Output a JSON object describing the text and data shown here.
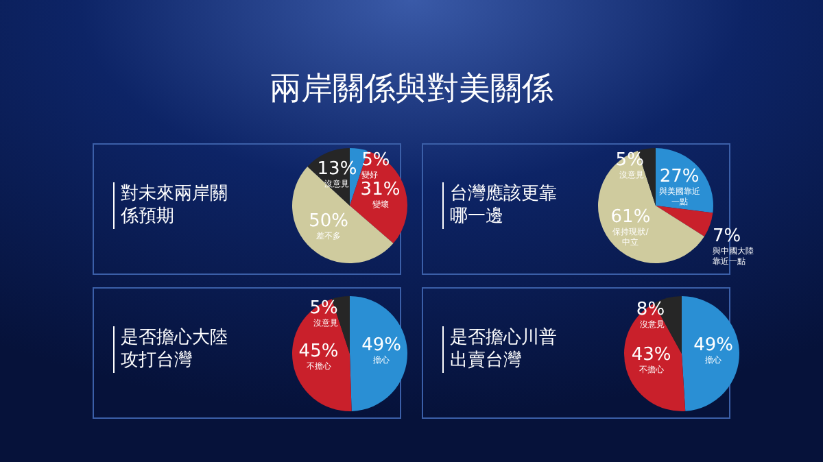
{
  "chart_data": [
    {
      "type": "other",
      "title": "兩岸關係與對美關係"
    },
    {
      "type": "pie",
      "title": "對未來兩岸關係預期",
      "categories": [
        "變好",
        "變壞",
        "差不多",
        "沒意見"
      ],
      "values": [
        5,
        31,
        50,
        13
      ],
      "value_labels": [
        "5%",
        "31%",
        "50%",
        "13%"
      ],
      "colors": [
        "#2a8fd4",
        "#c9202b",
        "#cfcb9e",
        "#262626"
      ]
    },
    {
      "type": "pie",
      "title": "台灣應該更靠哪一邊",
      "categories": [
        "與美國靠近一點",
        "與中國大陸靠近一點",
        "保持現狀/中立",
        "沒意見"
      ],
      "values": [
        27,
        7,
        61,
        5
      ],
      "value_labels": [
        "27%",
        "7%",
        "61%",
        "5%"
      ],
      "colors": [
        "#2a8fd4",
        "#c9202b",
        "#cfcb9e",
        "#262626"
      ]
    },
    {
      "type": "pie",
      "title": "是否擔心大陸攻打台灣",
      "categories": [
        "擔心",
        "不擔心",
        "沒意見"
      ],
      "values": [
        49,
        45,
        5
      ],
      "value_labels": [
        "49%",
        "45%",
        "5%"
      ],
      "colors": [
        "#2a8fd4",
        "#c9202b",
        "#262626"
      ]
    },
    {
      "type": "pie",
      "title": "是否擔心川普出賣台灣",
      "categories": [
        "擔心",
        "不擔心",
        "沒意見"
      ],
      "values": [
        49,
        43,
        8
      ],
      "value_labels": [
        "49%",
        "43%",
        "8%"
      ],
      "colors": [
        "#2a8fd4",
        "#c9202b",
        "#262626"
      ]
    }
  ]
}
